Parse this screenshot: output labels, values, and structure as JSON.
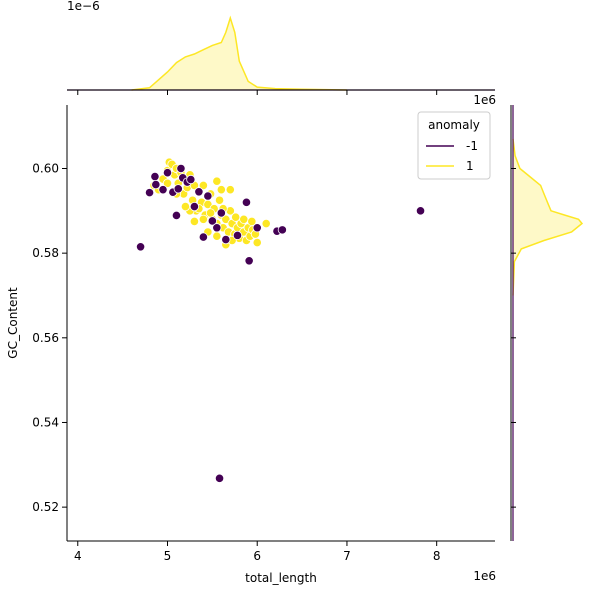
{
  "chart_data": {
    "type": "scatter",
    "xlabel": "total_length",
    "ylabel": "GC_Content",
    "x_scale_label": "1e6",
    "marginal_x_scale_label": "1e−6",
    "marginal_y_scale_label": "1e6",
    "xlim": [
      3.88,
      8.65
    ],
    "ylim": [
      0.512,
      0.615
    ],
    "x_ticks": [
      "4",
      "5",
      "6",
      "7",
      "8"
    ],
    "y_ticks": [
      "0.52",
      "0.54",
      "0.56",
      "0.58",
      "0.60"
    ],
    "legend": {
      "title": "anomaly",
      "position": "top-right",
      "entries": [
        {
          "label": "-1",
          "color": "#440154"
        },
        {
          "label": "1",
          "color": "#fde725"
        }
      ]
    },
    "series": [
      {
        "name": "-1",
        "color": "#440154",
        "points": [
          [
            4.7,
            0.5815
          ],
          [
            4.8,
            0.5943
          ],
          [
            4.86,
            0.5981
          ],
          [
            4.87,
            0.5962
          ],
          [
            4.95,
            0.595
          ],
          [
            5.0,
            0.599
          ],
          [
            5.06,
            0.5944
          ],
          [
            5.1,
            0.5889
          ],
          [
            5.12,
            0.5952
          ],
          [
            5.15,
            0.6
          ],
          [
            5.17,
            0.5978
          ],
          [
            5.22,
            0.5968
          ],
          [
            5.26,
            0.5974
          ],
          [
            5.3,
            0.591
          ],
          [
            5.35,
            0.5945
          ],
          [
            5.4,
            0.5838
          ],
          [
            5.45,
            0.5935
          ],
          [
            5.5,
            0.5876
          ],
          [
            5.55,
            0.586
          ],
          [
            5.6,
            0.5895
          ],
          [
            5.65,
            0.5832
          ],
          [
            5.78,
            0.5842
          ],
          [
            5.88,
            0.592
          ],
          [
            5.91,
            0.5782
          ],
          [
            6.0,
            0.586
          ],
          [
            6.22,
            0.5852
          ],
          [
            6.28,
            0.5855
          ],
          [
            7.82,
            0.59
          ],
          [
            5.58,
            0.5268
          ]
        ]
      },
      {
        "name": "1",
        "color": "#fde725",
        "points": [
          [
            4.85,
            0.596
          ],
          [
            4.9,
            0.595
          ],
          [
            4.95,
            0.5975
          ],
          [
            5.0,
            0.5995
          ],
          [
            5.02,
            0.6015
          ],
          [
            5.05,
            0.601
          ],
          [
            5.08,
            0.5985
          ],
          [
            5.1,
            0.6
          ],
          [
            5.12,
            0.5965
          ],
          [
            5.15,
            0.599
          ],
          [
            5.18,
            0.594
          ],
          [
            5.2,
            0.5975
          ],
          [
            5.22,
            0.5955
          ],
          [
            5.25,
            0.5985
          ],
          [
            5.28,
            0.5925
          ],
          [
            5.3,
            0.596
          ],
          [
            5.32,
            0.59
          ],
          [
            5.35,
            0.5945
          ],
          [
            5.38,
            0.592
          ],
          [
            5.4,
            0.596
          ],
          [
            5.42,
            0.589
          ],
          [
            5.45,
            0.5915
          ],
          [
            5.48,
            0.594
          ],
          [
            5.5,
            0.588
          ],
          [
            5.52,
            0.5905
          ],
          [
            5.55,
            0.587
          ],
          [
            5.58,
            0.5925
          ],
          [
            5.6,
            0.589
          ],
          [
            5.62,
            0.586
          ],
          [
            5.65,
            0.588
          ],
          [
            5.68,
            0.585
          ],
          [
            5.7,
            0.59
          ],
          [
            5.72,
            0.587
          ],
          [
            5.75,
            0.5845
          ],
          [
            5.78,
            0.586
          ],
          [
            5.8,
            0.5835
          ],
          [
            5.82,
            0.587
          ],
          [
            5.85,
            0.585
          ],
          [
            5.88,
            0.583
          ],
          [
            5.9,
            0.586
          ],
          [
            5.92,
            0.584
          ],
          [
            5.95,
            0.5855
          ],
          [
            5.98,
            0.5845
          ],
          [
            6.0,
            0.5825
          ],
          [
            6.1,
            0.587
          ],
          [
            5.55,
            0.597
          ],
          [
            5.7,
            0.595
          ],
          [
            5.6,
            0.595
          ],
          [
            5.3,
            0.5875
          ],
          [
            5.45,
            0.585
          ],
          [
            5.65,
            0.582
          ],
          [
            5.25,
            0.59
          ],
          [
            5.4,
            0.588
          ],
          [
            5.55,
            0.584
          ],
          [
            5.72,
            0.583
          ],
          [
            5.85,
            0.588
          ],
          [
            5.0,
            0.5965
          ],
          [
            5.1,
            0.594
          ],
          [
            5.2,
            0.591
          ],
          [
            5.35,
            0.5905
          ],
          [
            5.48,
            0.5895
          ],
          [
            5.62,
            0.5905
          ],
          [
            5.76,
            0.5885
          ],
          [
            5.94,
            0.5875
          ]
        ]
      }
    ],
    "marginal_x": {
      "x": [
        4.6,
        4.8,
        5.0,
        5.1,
        5.2,
        5.3,
        5.4,
        5.5,
        5.6,
        5.65,
        5.7,
        5.75,
        5.8,
        5.9,
        6.0,
        6.2,
        6.5,
        7.0
      ],
      "density": [
        0.0,
        0.03,
        0.25,
        0.38,
        0.46,
        0.5,
        0.56,
        0.62,
        0.66,
        0.8,
        1.0,
        0.8,
        0.4,
        0.12,
        0.04,
        0.02,
        0.01,
        0.0
      ]
    },
    "marginal_y": {
      "y": [
        0.57,
        0.578,
        0.581,
        0.583,
        0.585,
        0.587,
        0.588,
        0.589,
        0.59,
        0.592,
        0.594,
        0.596,
        0.598,
        0.6,
        0.603,
        0.607
      ],
      "density": [
        0.0,
        0.02,
        0.12,
        0.45,
        0.85,
        1.0,
        0.95,
        0.75,
        0.55,
        0.5,
        0.45,
        0.4,
        0.25,
        0.1,
        0.03,
        0.0
      ]
    }
  }
}
